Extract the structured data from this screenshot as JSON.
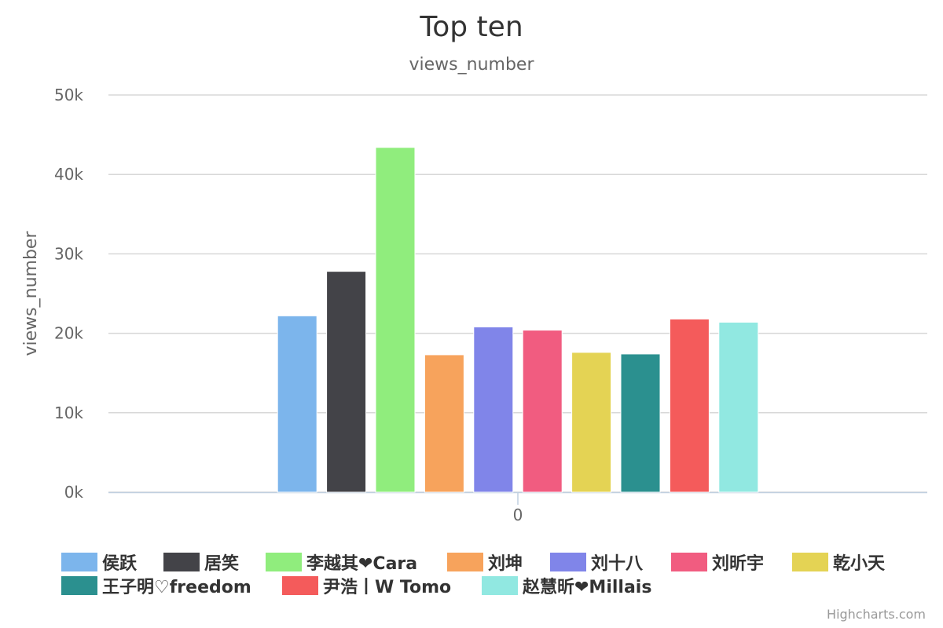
{
  "chart_data": {
    "type": "bar",
    "title": "Top ten",
    "subtitle": "views_number",
    "ylabel": "views_number",
    "xlabel": "",
    "categories": [
      "0"
    ],
    "ylim": [
      0,
      50000
    ],
    "yticks": [
      "0k",
      "10k",
      "20k",
      "30k",
      "40k",
      "50k"
    ],
    "grid": true,
    "legend_position": "bottom",
    "series": [
      {
        "name": "侯跃",
        "values": [
          22200
        ],
        "color": "#7cb5ec"
      },
      {
        "name": "居笑",
        "values": [
          27800
        ],
        "color": "#434348"
      },
      {
        "name": "李越其❤Cara",
        "values": [
          43400
        ],
        "color": "#90ed7d"
      },
      {
        "name": "刘坤",
        "values": [
          17300
        ],
        "color": "#f7a35c"
      },
      {
        "name": "刘十八",
        "values": [
          20800
        ],
        "color": "#8085e9"
      },
      {
        "name": "刘昕宇",
        "values": [
          20400
        ],
        "color": "#f15c80"
      },
      {
        "name": "乾小天",
        "values": [
          17600
        ],
        "color": "#e4d354"
      },
      {
        "name": "王子明♡freedom",
        "values": [
          17400
        ],
        "color": "#2b908f"
      },
      {
        "name": "尹浩丨W Tomo",
        "values": [
          21800
        ],
        "color": "#f45b5b"
      },
      {
        "name": "赵慧昕❤Millais",
        "values": [
          21400
        ],
        "color": "#91e8e1"
      }
    ]
  },
  "credits": "Highcharts.com"
}
